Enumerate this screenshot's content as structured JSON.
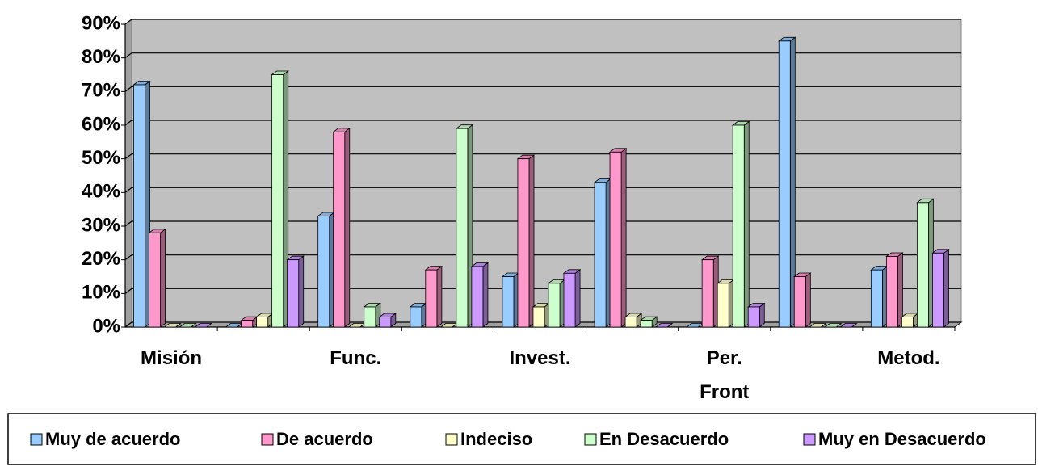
{
  "chart_data": {
    "type": "bar3d",
    "categories": [
      "Misión",
      null,
      "Func.",
      null,
      "Invest.",
      null,
      "Per. Front",
      null,
      "Metod."
    ],
    "series": [
      {
        "name": "Muy de acuerdo",
        "color": "#99ccff",
        "values": [
          72,
          0,
          33,
          6,
          15,
          43,
          0,
          85,
          17
        ]
      },
      {
        "name": "De acuerdo",
        "color": "#ff99cc",
        "values": [
          28,
          2,
          58,
          17,
          50,
          52,
          20,
          15,
          21
        ]
      },
      {
        "name": "Indeciso",
        "color": "#ffffcc",
        "values": [
          0,
          3,
          0,
          0,
          6,
          3,
          13,
          0,
          3
        ]
      },
      {
        "name": "En Desacuerdo",
        "color": "#ccffcc",
        "values": [
          0,
          75,
          6,
          59,
          13,
          2,
          60,
          0,
          37
        ]
      },
      {
        "name": "Muy en Desacuerdo",
        "color": "#cc99ff",
        "values": [
          0,
          20,
          3,
          18,
          16,
          0,
          6,
          0,
          22
        ]
      }
    ],
    "ylim": [
      0,
      90
    ],
    "yticks": [
      {
        "value": 0,
        "label": "0%"
      },
      {
        "value": 10,
        "label": "10%"
      },
      {
        "value": 20,
        "label": "20%"
      },
      {
        "value": 30,
        "label": "30%"
      },
      {
        "value": 40,
        "label": "40%"
      },
      {
        "value": 50,
        "label": "50%"
      },
      {
        "value": 60,
        "label": "60%"
      },
      {
        "value": 70,
        "label": "70%"
      },
      {
        "value": 80,
        "label": "80%"
      },
      {
        "value": 90,
        "label": "90%"
      }
    ],
    "grid": true,
    "legend": "bottom"
  }
}
